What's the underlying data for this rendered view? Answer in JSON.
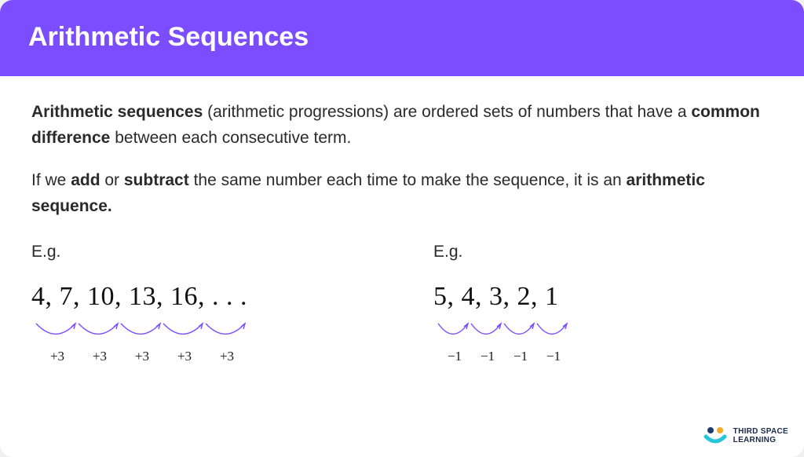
{
  "header": {
    "title": "Arithmetic Sequences",
    "background_color": "#7c4dff",
    "title_color": "#ffffff",
    "title_fontsize": 34
  },
  "body": {
    "text_color": "#2a2a2a",
    "fontsize": 21,
    "para1_pre": "Arithmetic sequences",
    "para1_mid1": " (arithmetic progressions) are ordered sets of numbers that have a ",
    "para1_bold2": "common difference",
    "para1_post": " between each consecutive term.",
    "para2_pre": "If we ",
    "para2_bold1": "add",
    "para2_mid1": " or ",
    "para2_bold2": "subtract",
    "para2_mid2": " the same number each time to make the sequence, it is an ",
    "para2_bold3": "arithmetic sequence."
  },
  "examples": {
    "eg_label": "E.g.",
    "arc_color": "#7c4dff",
    "diff_fontsize": 17,
    "ex1": {
      "terms": "4,  7,  10,  13,  16, . . .",
      "diffs": [
        "+3",
        "+3",
        "+3",
        "+3",
        "+3"
      ],
      "arc_count": 5,
      "arc_width": 54,
      "diff_width": 54
    },
    "ex2": {
      "terms": "5,  4,  3,  2,  1",
      "diffs": [
        "−1",
        "−1",
        "−1",
        "−1"
      ],
      "arc_count": 4,
      "arc_width": 42,
      "diff_width": 42
    }
  },
  "brand": {
    "line1": "THIRD SPACE",
    "line2": "LEARNING",
    "dot1_color": "#1f3a6e",
    "dot2_color": "#f9a825",
    "smile_color": "#26c6da"
  }
}
